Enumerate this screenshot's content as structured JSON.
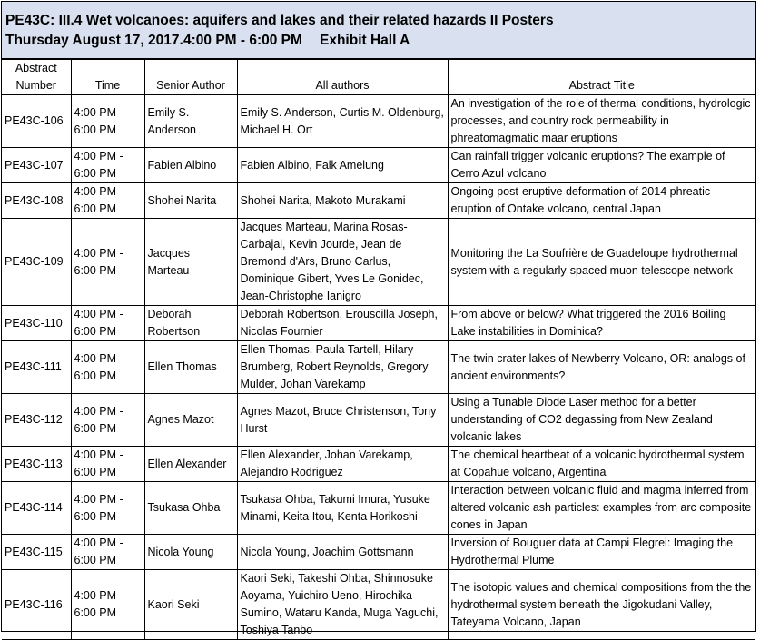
{
  "header": {
    "title": "PE43C: III.4 Wet volcanoes: aquifers and lakes and their related hazards II Posters",
    "date": "Thursday August 17, 2017.",
    "time": "4:00 PM - 6:00 PM",
    "location": "Exhibit Hall A"
  },
  "columns": {
    "number_line1": "Abstract",
    "number_line2": "Number",
    "time": "Time",
    "senior_author": "Senior Author",
    "all_authors": "All authors",
    "abstract_title": "Abstract Title"
  },
  "rows": [
    {
      "number": "PE43C-106",
      "time_line1": "4:00 PM -",
      "time_line2": "6:00 PM",
      "senior": "Emily S. Anderson",
      "authors": "Emily S. Anderson, Curtis M. Oldenburg, Michael H. Ort",
      "title": "An investigation of the role of thermal conditions, hydrologic processes, and country rock permeability in phreatomagmatic maar eruptions"
    },
    {
      "number": "PE43C-107",
      "time_line1": "4:00 PM -",
      "time_line2": "6:00 PM",
      "senior": "Fabien Albino",
      "authors": "Fabien Albino, Falk Amelung",
      "title": "Can rainfall trigger volcanic eruptions? The example of Cerro Azul volcano"
    },
    {
      "number": "PE43C-108",
      "time_line1": "4:00 PM -",
      "time_line2": "6:00 PM",
      "senior": "Shohei Narita",
      "authors": "Shohei Narita, Makoto Murakami",
      "title": "Ongoing post-eruptive deformation of 2014 phreatic eruption of Ontake volcano, central Japan"
    },
    {
      "number": "PE43C-109",
      "time_line1": "4:00 PM -",
      "time_line2": "6:00 PM",
      "senior": "Jacques Marteau",
      "authors": "Jacques Marteau, Marina Rosas-Carbajal, Kevin Jourde, Jean de Bremond d'Ars, Bruno Carlus, Dominique Gibert, Yves Le Gonidec, Jean-Christophe Ianigro",
      "title": "Monitoring the La Soufrière de Guadeloupe hydrothermal system with a regularly-spaced muon telescope network"
    },
    {
      "number": "PE43C-110",
      "time_line1": "4:00 PM -",
      "time_line2": "6:00 PM",
      "senior": "Deborah Robertson",
      "authors": "Deborah Robertson, Erouscilla Joseph, Nicolas Fournier",
      "title": "From above or below? What triggered the 2016 Boiling Lake instabilities in Dominica?"
    },
    {
      "number": "PE43C-111",
      "time_line1": "4:00 PM -",
      "time_line2": "6:00 PM",
      "senior": "Ellen Thomas",
      "authors": "Ellen Thomas, Paula Tartell, Hilary Brumberg, Robert Reynolds, Gregory Mulder, Johan Varekamp",
      "title": "The twin crater lakes of Newberry Volcano, OR: analogs of ancient environments?"
    },
    {
      "number": "PE43C-112",
      "time_line1": "4:00 PM -",
      "time_line2": "6:00 PM",
      "senior": "Agnes Mazot",
      "authors": "Agnes Mazot, Bruce Christenson, Tony Hurst",
      "title": "Using a Tunable Diode Laser method for a better understanding of CO2 degassing from New Zealand volcanic lakes"
    },
    {
      "number": "PE43C-113",
      "time_line1": "4:00 PM -",
      "time_line2": "6:00 PM",
      "senior": "Ellen Alexander",
      "authors": "Ellen Alexander, Johan Varekamp, Alejandro Rodriguez",
      "title": "The chemical heartbeat of a volcanic hydrothermal system at Copahue volcano, Argentina"
    },
    {
      "number": "PE43C-114",
      "time_line1": "4:00 PM -",
      "time_line2": "6:00 PM",
      "senior": "Tsukasa Ohba",
      "authors": "Tsukasa Ohba, Takumi Imura, Yusuke Minami, Keita Itou, Kenta Horikoshi",
      "title": "Interaction between volcanic fluid and magma inferred from altered volcanic ash particles: examples from arc composite cones in Japan"
    },
    {
      "number": "PE43C-115",
      "time_line1": "4:00 PM -",
      "time_line2": "6:00 PM",
      "senior": "Nicola Young",
      "authors": "Nicola Young, Joachim Gottsmann",
      "title": "Inversion of Bouguer data at Campi Flegrei: Imaging the Hydrothermal Plume"
    },
    {
      "number": "PE43C-116",
      "time_line1": "4:00 PM -",
      "time_line2": "6:00 PM",
      "senior": "Kaori Seki",
      "authors": "Kaori Seki, Takeshi Ohba, Shinnosuke Aoyama, Yuichiro Ueno, Hirochika Sumino, Wataru Kanda, Muga Yaguchi, Toshiya Tanbo",
      "title": "The isotopic values and chemical compositions from the the hydrothermal system beneath the Jigokudani Valley, Tateyama Volcano, Japan"
    }
  ]
}
